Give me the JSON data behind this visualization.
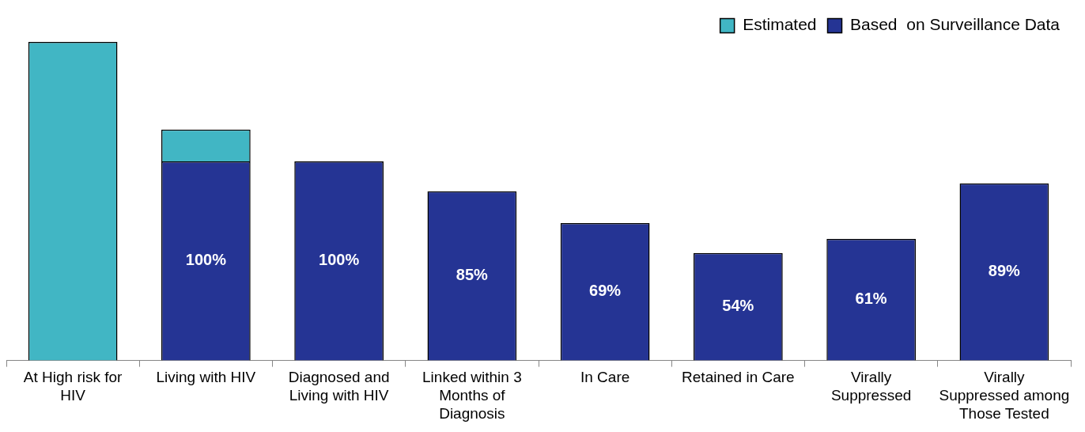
{
  "chart_data": {
    "type": "bar",
    "ylim": [
      0,
      160
    ],
    "stacked": true,
    "legend": "top right",
    "categories": [
      "At High risk for HIV",
      "Living with HIV",
      "Diagnosed and Living with HIV",
      "Linked within 3 Months of Diagnosis",
      "In Care",
      "Retained in Care",
      "Virally Suppressed",
      "Virally Suppressed among Those Tested"
    ],
    "series": [
      {
        "name": "Based  on Surveillance Data",
        "color": "#253494",
        "values": [
          null,
          100,
          100,
          85,
          69,
          54,
          61,
          89
        ],
        "value_labels": [
          null,
          "100%",
          "100%",
          "85%",
          "69%",
          "54%",
          "61%",
          "89%"
        ]
      },
      {
        "name": "Estimated",
        "color": "#41b6c4",
        "values": [
          160,
          16,
          null,
          null,
          null,
          null,
          null,
          null
        ]
      }
    ]
  }
}
